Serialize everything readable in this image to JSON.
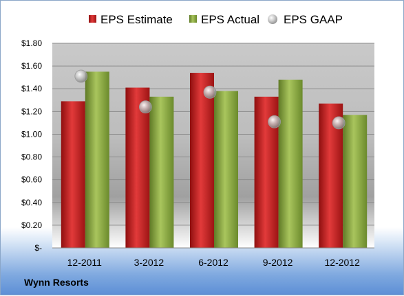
{
  "chart_data": {
    "type": "bar",
    "title": "",
    "xlabel": "",
    "ylabel": "",
    "categories": [
      "12-2011",
      "3-2012",
      "6-2012",
      "9-2012",
      "12-2012"
    ],
    "series": [
      {
        "name": "EPS Estimate",
        "kind": "bar",
        "color": "#d42020",
        "values": [
          1.29,
          1.41,
          1.54,
          1.33,
          1.27
        ]
      },
      {
        "name": "EPS Actual",
        "kind": "bar",
        "color": "#93b24a",
        "values": [
          1.55,
          1.33,
          1.38,
          1.48,
          1.17
        ]
      },
      {
        "name": "EPS GAAP",
        "kind": "marker",
        "color": "#b8b8b8",
        "values": [
          1.51,
          1.24,
          1.37,
          1.11,
          1.1
        ]
      }
    ],
    "ylim": [
      0,
      1.8
    ],
    "yticks": [
      0,
      0.2,
      0.4,
      0.6,
      0.8,
      1.0,
      1.2,
      1.4,
      1.6,
      1.8
    ],
    "ytick_labels": [
      "$-",
      "$0.20",
      "$0.40",
      "$0.60",
      "$0.80",
      "$1.00",
      "$1.20",
      "$1.40",
      "$1.60",
      "$1.80"
    ],
    "grid": true,
    "legend_position": "top"
  },
  "footer": {
    "company": "Wynn Resorts"
  }
}
